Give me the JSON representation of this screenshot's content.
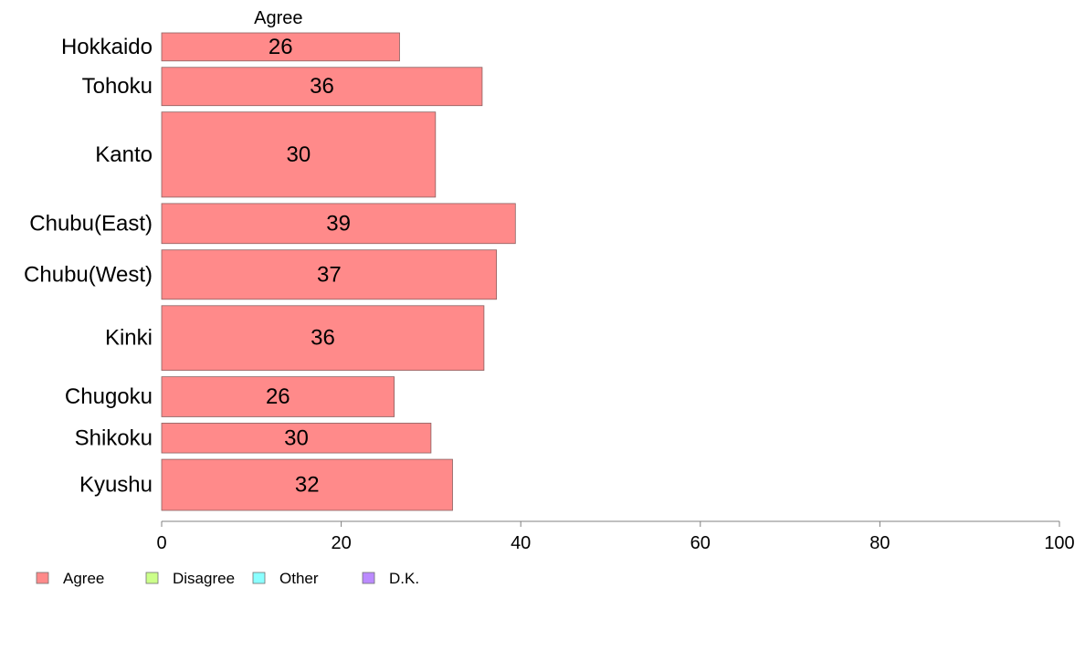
{
  "chart_data": {
    "type": "bar",
    "orientation": "horizontal",
    "stacked": true,
    "series_header": "Agree",
    "categories": [
      "Hokkaido",
      "Tohoku",
      "Kanto",
      "Chubu(East)",
      "Chubu(West)",
      "Kinki",
      "Chugoku",
      "Shikoku",
      "Kyushu"
    ],
    "category_weights": [
      0.33,
      0.45,
      1.0,
      0.47,
      0.58,
      0.76,
      0.47,
      0.35,
      0.6
    ],
    "series": [
      {
        "name": "Agree",
        "values": [
          26.5,
          35.7,
          30.5,
          39.4,
          37.3,
          35.9,
          25.9,
          30.0,
          32.4
        ]
      }
    ],
    "value_labels": [
      "26",
      "36",
      "30",
      "39",
      "37",
      "36",
      "26",
      "30",
      "32"
    ],
    "xlim": [
      0,
      100
    ],
    "xticks": [
      0,
      20,
      40,
      60,
      80,
      100
    ],
    "grid": false,
    "legend": {
      "position": "bottom-left",
      "entries": [
        {
          "label": "Agree",
          "color": "#FF8A8A"
        },
        {
          "label": "Disagree",
          "color": "#CCFF8A"
        },
        {
          "label": "Other",
          "color": "#8AFFFF"
        },
        {
          "label": "D.K.",
          "color": "#BB8AFF"
        }
      ]
    }
  }
}
